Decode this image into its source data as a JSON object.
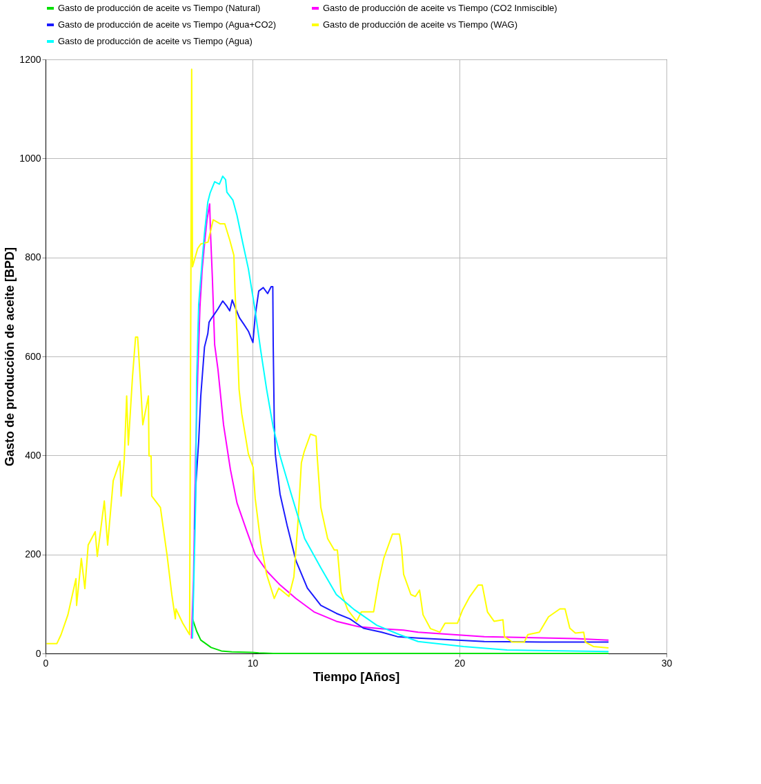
{
  "chart_data": {
    "type": "line",
    "xlabel": "Tiempo [Años]",
    "ylabel": "Gasto de producción de aceite [BPD]",
    "xlim": [
      0,
      30
    ],
    "ylim": [
      0,
      1200
    ],
    "xticks": [
      0,
      10,
      20,
      30
    ],
    "yticks": [
      0,
      200,
      400,
      600,
      800,
      1000,
      1200
    ],
    "grid": true,
    "legend": "top",
    "marker": "none",
    "line_style": "solid",
    "series": [
      {
        "name": "Gasto de producción  de aceite vs Tiempo (Natural)",
        "color": "#00e000",
        "x": [
          7.1,
          7.3,
          7.5,
          8,
          8.5,
          9,
          10,
          10.3,
          11,
          27.2
        ],
        "values": [
          70,
          45,
          27,
          12,
          5,
          3,
          2,
          1,
          0,
          0
        ]
      },
      {
        "name": "Gasto de producción  de aceite vs Tiempo (CO2  Inmiscible)",
        "color": "#ff00ff",
        "x": [
          7.05,
          7.15,
          7.25,
          7.35,
          7.46,
          7.57,
          7.68,
          7.8,
          7.93,
          7.97,
          8.06,
          8.17,
          8.33,
          8.6,
          8.93,
          9.25,
          9.7,
          10.13,
          10.72,
          11.34,
          12.1,
          12.97,
          14.05,
          15.13,
          16.24,
          17.3,
          18,
          21.2,
          25.6,
          27.2
        ],
        "values": [
          30,
          150,
          400,
          560,
          700,
          777,
          827,
          876,
          908,
          850,
          759,
          624,
          574,
          462,
          372,
          304,
          250,
          200,
          165,
          138,
          111,
          84,
          65,
          54,
          50,
          47,
          43,
          34,
          30,
          27
        ]
      },
      {
        "name": "Gasto de producción  de aceite vs Tiempo (Agua+CO2)",
        "color": "#1a1aff",
        "x": [
          7.2,
          7.26,
          7.4,
          7.5,
          7.68,
          7.84,
          7.9,
          8.0,
          8.17,
          8.33,
          8.56,
          8.75,
          8.9,
          9.02,
          9.15,
          9.37,
          9.58,
          9.8,
          10.02,
          10.13,
          10.3,
          10.52,
          10.73,
          10.9,
          10.98,
          11.0,
          11.05,
          11.1,
          11.33,
          11.67,
          12.1,
          12.65,
          13.3,
          14.05,
          14.7,
          15.36,
          16.24,
          17,
          18,
          21.2,
          24,
          27.2
        ],
        "values": [
          250,
          340,
          430,
          520,
          619,
          646,
          669,
          676,
          686,
          696,
          712,
          702,
          692,
          714,
          700,
          678,
          665,
          651,
          628,
          682,
          732,
          739,
          727,
          741,
          741,
          624,
          470,
          403,
          322,
          259,
          187,
          132,
          97,
          81,
          70,
          51,
          43,
          34,
          31,
          24,
          23,
          23
        ]
      },
      {
        "name": "Gasto de producción  de aceite vs Tiempo (WAG)",
        "color": "#ffff00",
        "x": [
          0.05,
          0.55,
          0.75,
          1.08,
          1.47,
          1.5,
          1.73,
          1.9,
          2.06,
          2.4,
          2.5,
          2.84,
          3.0,
          3.27,
          3.6,
          3.65,
          3.8,
          3.92,
          4.0,
          4.2,
          4.35,
          4.45,
          4.6,
          4.7,
          4.97,
          5.0,
          5.1,
          5.13,
          5.55,
          5.88,
          6.1,
          6.27,
          6.3,
          6.63,
          6.96,
          7.06,
          7.1,
          7.35,
          7.5,
          7.85,
          8.1,
          8.43,
          8.66,
          8.9,
          9.1,
          9.15,
          9.25,
          9.35,
          9.48,
          9.8,
          10.03,
          10.13,
          10.4,
          10.68,
          11.05,
          11.27,
          11.76,
          12.0,
          12.2,
          12.36,
          12.5,
          12.8,
          13.07,
          13.13,
          13.3,
          13.63,
          13.95,
          14.1,
          14.28,
          14.6,
          15.03,
          15.26,
          15.85,
          16.1,
          16.34,
          16.76,
          17.1,
          17.2,
          17.3,
          17.65,
          17.87,
          18.07,
          18.24,
          18.6,
          19.05,
          19.3,
          19.9,
          20.15,
          20.5,
          20.9,
          21.1,
          21.35,
          21.67,
          22.1,
          22.17,
          22.55,
          23.13,
          23.3,
          23.86,
          24.3,
          24.85,
          25.1,
          25.33,
          25.6,
          26.0,
          26.08,
          26.47,
          27.2
        ],
        "values": [
          20,
          20,
          38,
          78,
          151,
          97,
          192,
          131,
          219,
          246,
          196,
          308,
          219,
          349,
          389,
          318,
          389,
          520,
          421,
          558,
          639,
          639,
          538,
          462,
          520,
          399,
          399,
          318,
          295,
          196,
          119,
          70,
          90,
          61,
          38,
          1180,
          781,
          818,
          827,
          831,
          876,
          868,
          868,
          835,
          804,
          736,
          646,
          534,
          484,
          403,
          376,
          313,
          223,
          160,
          111,
          132,
          115,
          155,
          268,
          385,
          408,
          443,
          439,
          395,
          295,
          232,
          209,
          209,
          124,
          88,
          65,
          84,
          84,
          146,
          192,
          241,
          241,
          214,
          160,
          119,
          115,
          128,
          78,
          50,
          43,
          61,
          61,
          88,
          115,
          138,
          138,
          84,
          65,
          68,
          34,
          23,
          23,
          38,
          43,
          74,
          90,
          90,
          51,
          41,
          43,
          23,
          14,
          11
        ]
      },
      {
        "name": "Gasto de producción  de aceite vs Tiempo (Agua)",
        "color": "#00ffff",
        "x": [
          7.1,
          7.25,
          7.3,
          7.4,
          7.57,
          7.68,
          7.84,
          7.95,
          8.17,
          8.4,
          8.56,
          8.7,
          8.76,
          9.05,
          9.25,
          9.54,
          9.8,
          10.13,
          10.4,
          10.68,
          11.0,
          11.33,
          11.87,
          12.52,
          13.3,
          14.05,
          14.93,
          16.0,
          17.1,
          18,
          20.2,
          22.3,
          27.2
        ],
        "values": [
          30,
          300,
          551,
          705,
          795,
          849,
          912,
          930,
          953,
          948,
          964,
          957,
          932,
          916,
          885,
          827,
          777,
          692,
          611,
          534,
          457,
          399,
          322,
          232,
          173,
          119,
          88,
          57,
          38,
          24,
          14,
          7,
          4
        ]
      }
    ]
  }
}
